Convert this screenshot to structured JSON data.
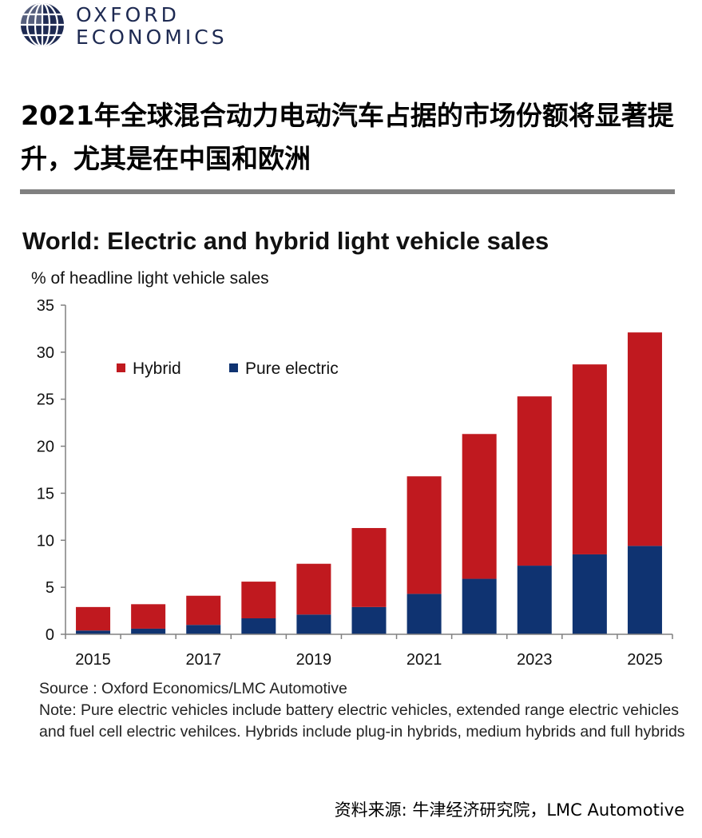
{
  "brand": {
    "line1": "OXFORD",
    "line2": "ECONOMICS",
    "color": "#1e2a52"
  },
  "headline": "2021年全球混合动力电动汽车占据的市场份额将显著提升，尤其是在中国和欧洲",
  "chart_data": {
    "type": "bar",
    "stacked": true,
    "title": "World: Electric and hybrid light vehicle sales",
    "ylabel": "% of headline light vehicle sales",
    "xlabel": "",
    "categories": [
      "2015",
      "2016",
      "2017",
      "2018",
      "2019",
      "2020",
      "2021",
      "2022",
      "2023",
      "2024",
      "2025"
    ],
    "tick_labels": [
      "2015",
      "",
      "2017",
      "",
      "2019",
      "",
      "2021",
      "",
      "2023",
      "",
      "2025"
    ],
    "ylim": [
      0,
      35
    ],
    "yticks": [
      0,
      5,
      10,
      15,
      20,
      25,
      30,
      35
    ],
    "grid": false,
    "legend_position": "top-left",
    "series": [
      {
        "name": "Pure electric",
        "color": "#0f3371",
        "values": [
          0.4,
          0.6,
          1.0,
          1.7,
          2.1,
          2.9,
          4.3,
          5.9,
          7.3,
          8.5,
          9.4
        ]
      },
      {
        "name": "Hybrid",
        "color": "#c0191f",
        "values": [
          2.5,
          2.6,
          3.1,
          3.9,
          5.4,
          8.4,
          12.5,
          15.4,
          18.0,
          20.2,
          22.7
        ]
      }
    ],
    "legend": [
      {
        "name": "Hybrid",
        "color": "#c0191f"
      },
      {
        "name": "Pure electric",
        "color": "#0f3371"
      }
    ]
  },
  "source_note": {
    "source": "Source : Oxford Economics/LMC Automotive",
    "note": "Note: Pure electric vehicles include battery electric vehicles, extended range electric vehicles and fuel cell electric vehilces. Hybrids include plug-in hybrids, medium hybrids and full hybrids"
  },
  "footer": "资料来源: 牛津经济研究院，LMC Automotive"
}
